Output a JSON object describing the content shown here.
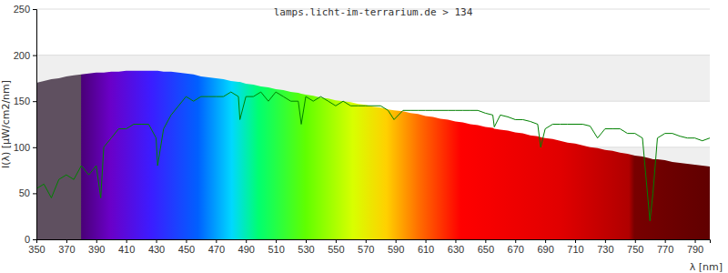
{
  "chart_data": {
    "type": "line",
    "title": "lamps.licht-im-terrarium.de > 134",
    "x_label": "λ [nm]",
    "y_label": "I(λ) [µW/cm2/nm]",
    "x": [
      350,
      355,
      360,
      365,
      370,
      375,
      380,
      385,
      390,
      393,
      395,
      400,
      405,
      410,
      415,
      420,
      425,
      430,
      431,
      435,
      440,
      445,
      450,
      455,
      460,
      465,
      470,
      475,
      480,
      485,
      486,
      490,
      495,
      500,
      505,
      510,
      515,
      520,
      525,
      527,
      530,
      535,
      540,
      545,
      550,
      555,
      560,
      565,
      570,
      575,
      580,
      585,
      589,
      595,
      600,
      605,
      610,
      615,
      620,
      625,
      630,
      635,
      640,
      645,
      650,
      655,
      656,
      660,
      665,
      670,
      675,
      680,
      685,
      687,
      690,
      695,
      700,
      705,
      710,
      715,
      720,
      725,
      730,
      735,
      740,
      745,
      750,
      755,
      760,
      762,
      765,
      770,
      775,
      780,
      785,
      790,
      795,
      800
    ],
    "series": [
      {
        "type": "area",
        "values": [
          170,
          172,
          174,
          175,
          177,
          178,
          179,
          180,
          181,
          181,
          181,
          182,
          182,
          183,
          183,
          183,
          183,
          183,
          183,
          182,
          182,
          181,
          180,
          179,
          177,
          176,
          175,
          174,
          172,
          171,
          171,
          169,
          168,
          166,
          165,
          163,
          162,
          160,
          159,
          158,
          157,
          156,
          154,
          153,
          151,
          150,
          149,
          147,
          146,
          144,
          143,
          141,
          140,
          139,
          137,
          136,
          134,
          133,
          131,
          130,
          128,
          127,
          125,
          124,
          122,
          121,
          120,
          119,
          118,
          116,
          115,
          113,
          112,
          111,
          110,
          109,
          107,
          105,
          104,
          102,
          100,
          99,
          97,
          96,
          94,
          93,
          91,
          90,
          88,
          87,
          87,
          86,
          84,
          83,
          82,
          81,
          80,
          79
        ]
      },
      {
        "type": "line",
        "color": "#008000",
        "values": [
          55,
          60,
          45,
          65,
          70,
          65,
          80,
          70,
          80,
          45,
          100,
          110,
          120,
          120,
          125,
          125,
          125,
          110,
          80,
          120,
          135,
          145,
          155,
          150,
          155,
          155,
          155,
          155,
          160,
          155,
          130,
          155,
          155,
          160,
          150,
          160,
          155,
          150,
          150,
          125,
          155,
          150,
          155,
          150,
          145,
          150,
          145,
          145,
          145,
          145,
          145,
          140,
          130,
          140,
          140,
          140,
          140,
          140,
          140,
          140,
          140,
          140,
          140,
          140,
          137,
          135,
          122,
          135,
          133,
          130,
          130,
          128,
          125,
          100,
          120,
          125,
          125,
          125,
          125,
          125,
          123,
          110,
          120,
          120,
          120,
          115,
          115,
          110,
          20,
          50,
          110,
          115,
          115,
          112,
          110,
          110,
          107,
          110
        ]
      }
    ],
    "xlim": [
      350,
      800
    ],
    "xticks": [
      350,
      370,
      390,
      410,
      430,
      450,
      470,
      490,
      510,
      530,
      550,
      570,
      590,
      610,
      630,
      650,
      670,
      690,
      710,
      730,
      750,
      770,
      790
    ],
    "ylim": [
      0,
      250
    ],
    "yticks": [
      0,
      50,
      100,
      150,
      200,
      250
    ],
    "grid": true
  }
}
